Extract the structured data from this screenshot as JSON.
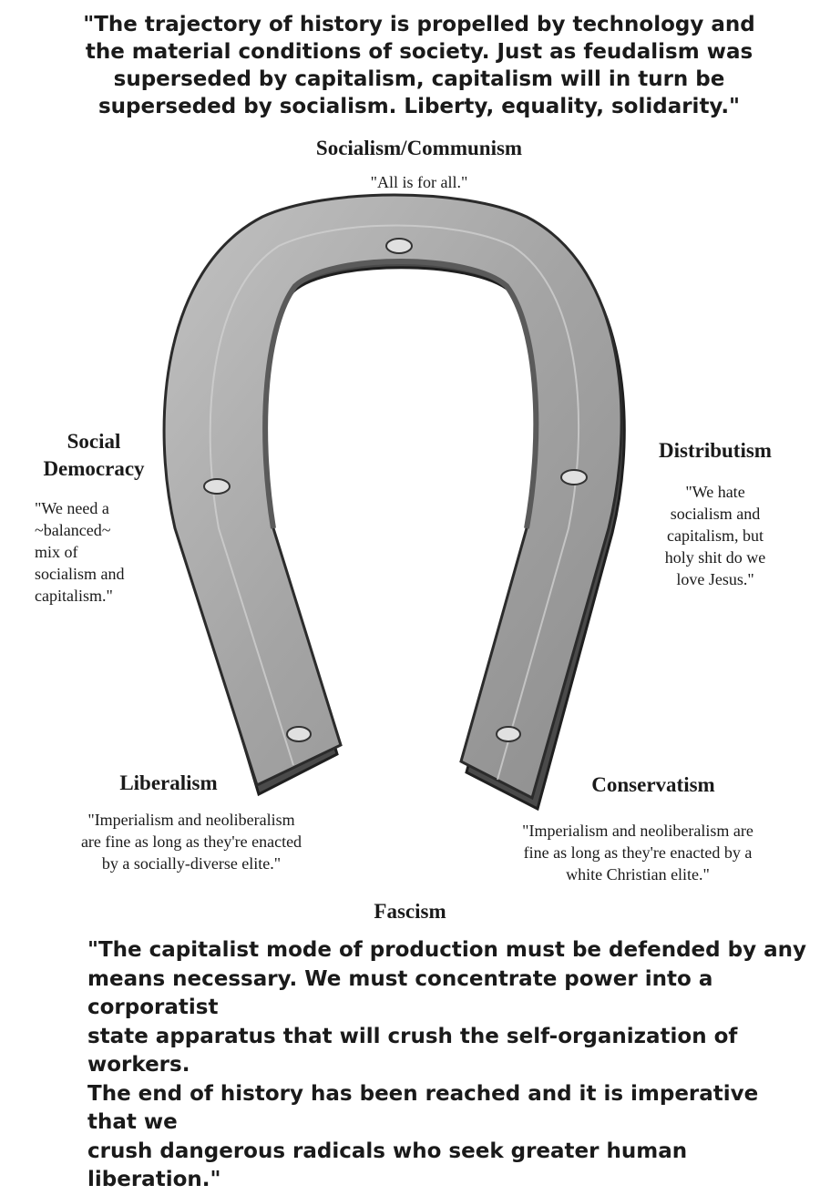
{
  "top_quote": "\"The trajectory of history is propelled by technology and\nthe material conditions of society. Just as feudalism was\nsuperseded by capitalism, capitalism will in turn be\nsuperseded by socialism. Liberty, equality, solidarity.\"",
  "top": {
    "heading": "Socialism/Communism",
    "quote": "\"All is for all.\""
  },
  "left_upper": {
    "heading": "Social\nDemocracy",
    "quote": "\"We need a\n~balanced~\nmix of\nsocialism and\ncapitalism.\""
  },
  "right_upper": {
    "heading": "Distributism",
    "quote": "\"We hate\nsocialism and\ncapitalism, but\nholy shit do we\nlove Jesus.\""
  },
  "left_lower": {
    "heading": "Liberalism",
    "quote": "\"Imperialism and neoliberalism\nare fine as  long as they're enacted\nby a socially-diverse elite.\""
  },
  "right_lower": {
    "heading": "Conservatism",
    "quote": "\"Imperialism and neoliberalism are\nfine as long as they're enacted by a\nwhite Christian elite.\""
  },
  "bottom": {
    "heading": "Fascism",
    "quote": "\"The capitalist mode of production must be defended by any\nmeans necessary. We must concentrate power into a corporatist\nstate apparatus that will crush the self-organization of workers.\nThe end of history has been reached and it is imperative that we\ncrush dangerous radicals who seek greater human liberation.\""
  },
  "colors": {
    "horseshoe_face": "#a9a9a9",
    "horseshoe_edge": "#3a3a3a",
    "text": "#1a1a1a"
  },
  "icons": [
    "horseshoe-icon"
  ]
}
